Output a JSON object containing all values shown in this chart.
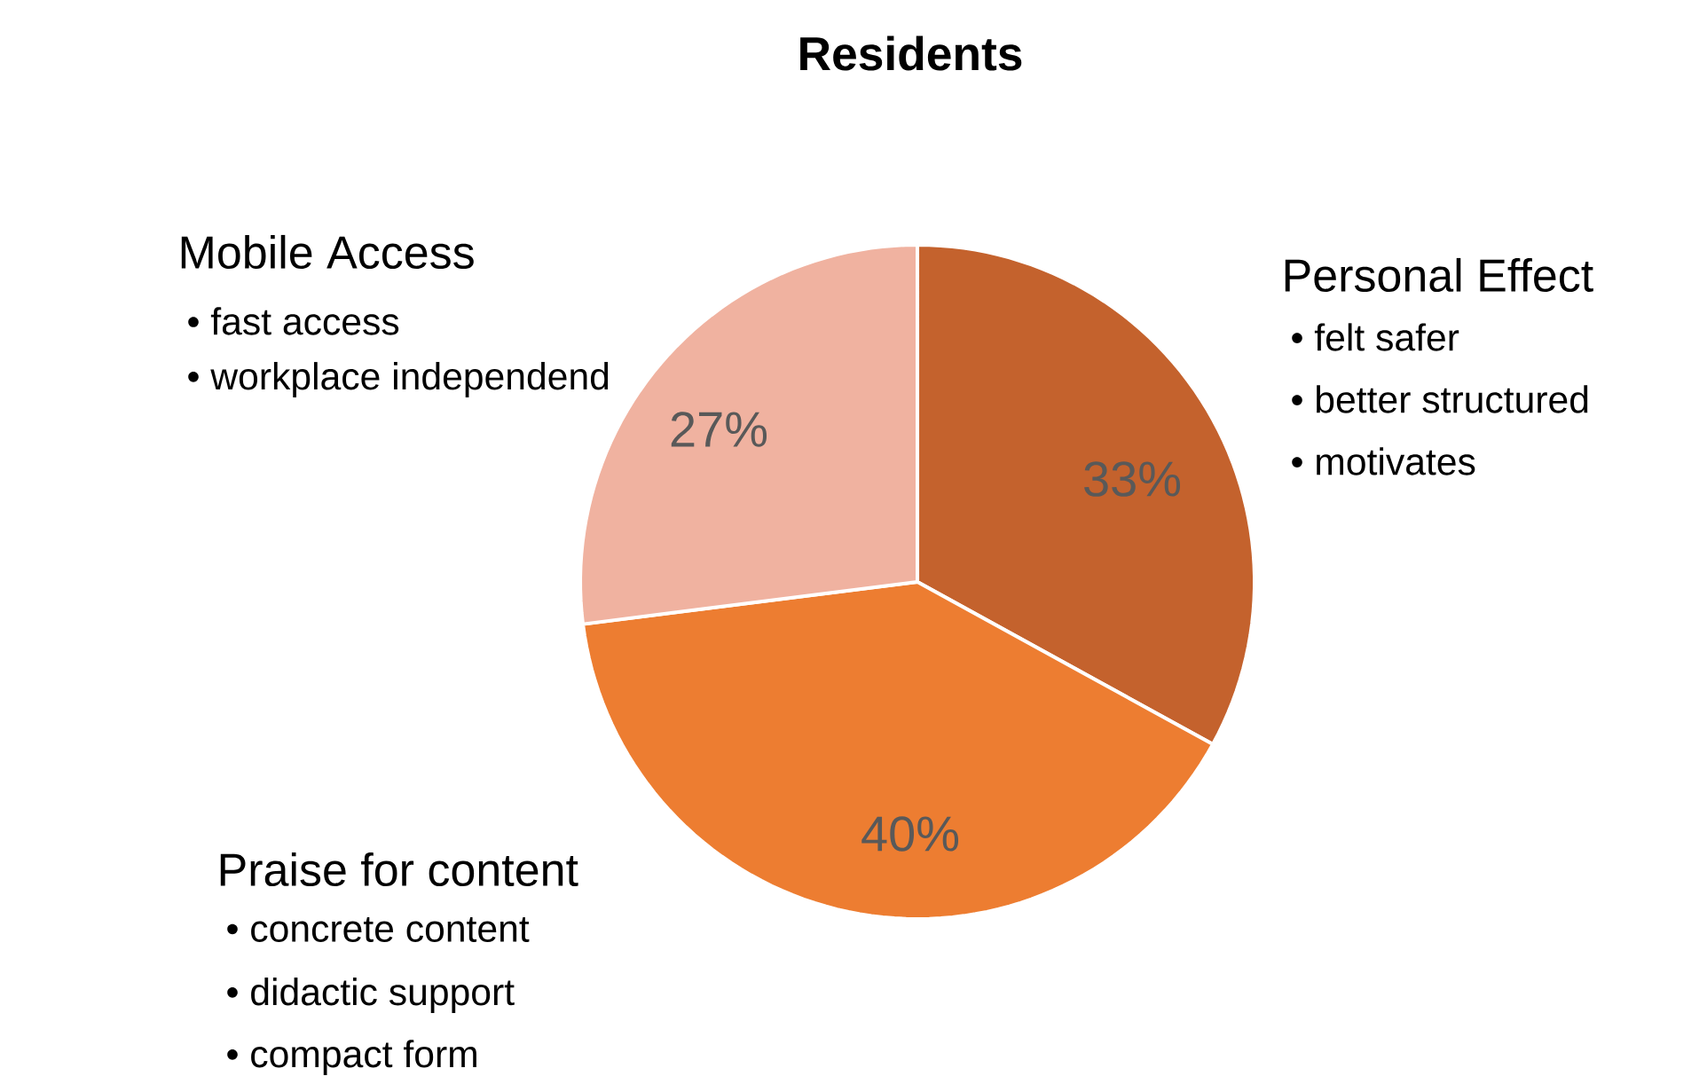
{
  "chart_data": {
    "type": "pie",
    "title": "Residents",
    "categories": [
      "Personal Effect",
      "Praise for content",
      "Mobile Access"
    ],
    "values": [
      33,
      40,
      27
    ],
    "colors": [
      "#c4622d",
      "#ed7d31",
      "#f0b2a0"
    ],
    "value_labels": [
      "33%",
      "40%",
      "27%"
    ],
    "annotations": [
      "• felt safer",
      "• better structured",
      "• motivates",
      "• concrete content",
      "• didactic support",
      "• compact form",
      "• fast access",
      "• workplace independend"
    ]
  }
}
